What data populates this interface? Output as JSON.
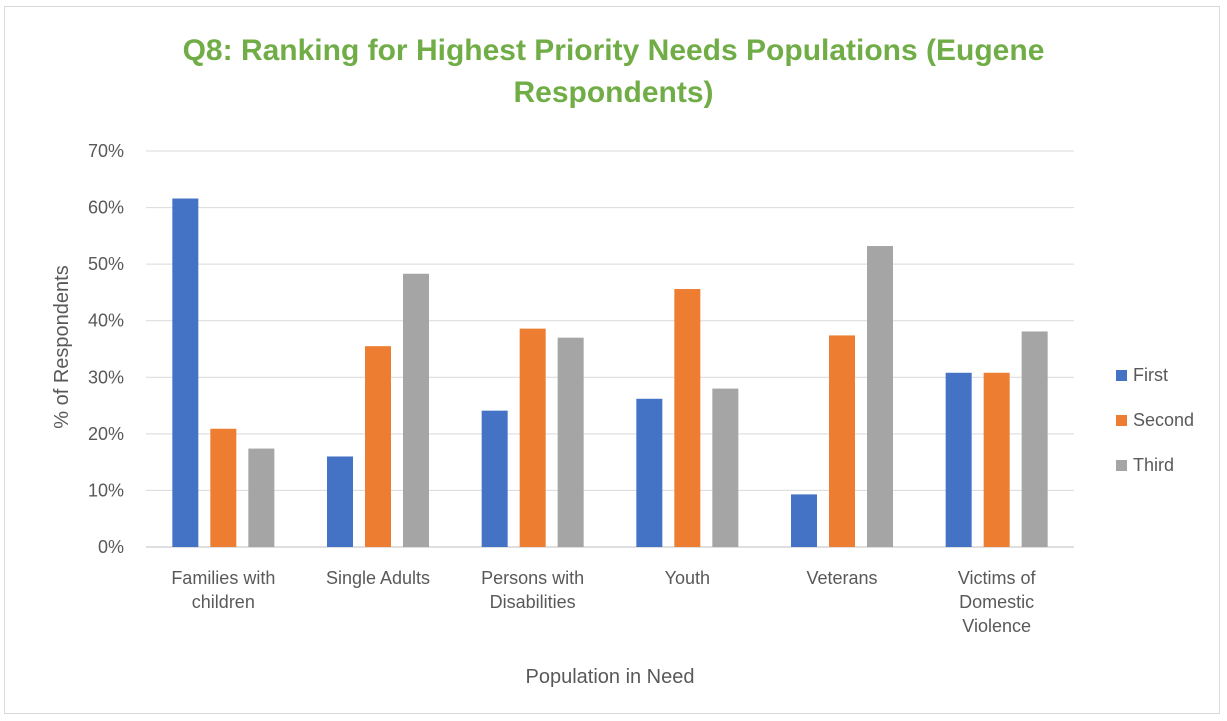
{
  "chart_data": {
    "type": "bar",
    "title_lines": [
      "Q8: Ranking for Highest Priority Needs Populations (Eugene",
      "Respondents)"
    ],
    "xlabel": "Population in Need",
    "ylabel": "% of Respondents",
    "categories": [
      [
        "Families with",
        "children"
      ],
      [
        "Single Adults"
      ],
      [
        "Persons with",
        "Disabilities"
      ],
      [
        "Youth"
      ],
      [
        "Veterans"
      ],
      [
        "Victims of",
        "Domestic",
        "Violence"
      ]
    ],
    "series": [
      {
        "name": "First",
        "color": "#4472c4",
        "values": [
          61.6,
          16.0,
          24.1,
          26.2,
          9.3,
          30.8
        ]
      },
      {
        "name": "Second",
        "color": "#ed7d31",
        "values": [
          20.9,
          35.5,
          38.6,
          45.6,
          37.4,
          30.8
        ]
      },
      {
        "name": "Third",
        "color": "#a5a5a5",
        "values": [
          17.4,
          48.3,
          37.0,
          28.0,
          53.2,
          38.1
        ]
      }
    ],
    "ylim": [
      0,
      70
    ],
    "yticks": [
      0,
      10,
      20,
      30,
      40,
      50,
      60,
      70
    ],
    "ytick_suffix": "%",
    "grid": true,
    "legend_position": "right"
  }
}
